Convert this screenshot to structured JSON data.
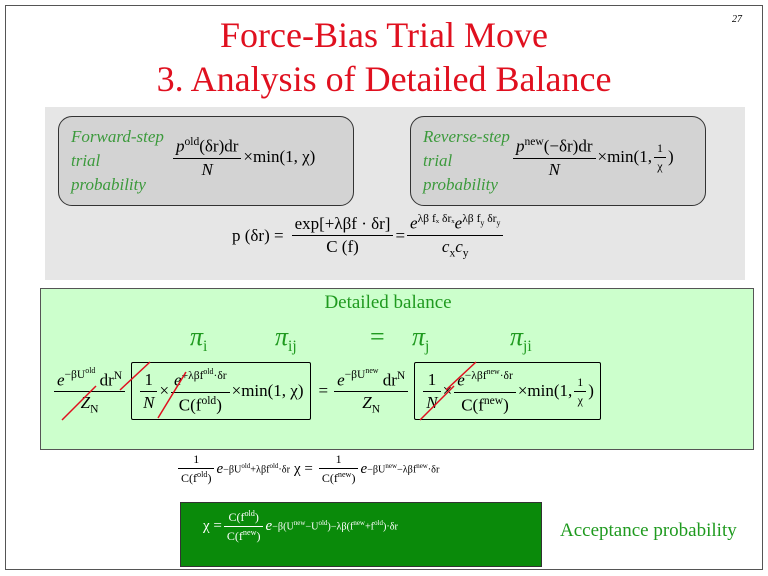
{
  "slide_number": "27",
  "title": [
    "Force-Bias Trial Move",
    "3.  Analysis of Detailed Balance"
  ],
  "forward_box": {
    "label": [
      "Forward-step",
      "trial",
      "probability"
    ],
    "formula": {
      "num": [
        "p",
        "old",
        "(δr)dr"
      ],
      "den": [
        "N"
      ],
      "after": [
        "×min(1, χ)"
      ]
    }
  },
  "reverse_box": {
    "label": [
      "Reverse-step",
      "trial",
      "probability"
    ],
    "formula": {
      "num": [
        "p",
        "new",
        "(−δr)dr"
      ],
      "den": [
        "N"
      ],
      "after": [
        "×min(1, ",
        "1",
        "χ",
        ")"
      ]
    }
  },
  "bias_formula": {
    "lhs": "p (δr) =",
    "num1": "exp[+λβf · δr]",
    "den1": "C (f)",
    "eq": "=",
    "num2": [
      "e",
      "λβ fₓ δrₓ",
      "e",
      "λβ f",
      "y",
      " δr",
      "y"
    ],
    "den2": [
      "c",
      "x",
      "c",
      "y"
    ]
  },
  "detailed_balance": {
    "label": "Detailed balance",
    "pis": [
      "π",
      "i",
      "π",
      "ij",
      "=",
      "π",
      "j",
      "π",
      "ji"
    ],
    "left": {
      "num": [
        "e",
        "−βU",
        "old",
        "dr",
        "N"
      ],
      "den": [
        "Z",
        "N"
      ],
      "bracket": [
        "1",
        "N",
        "×",
        "e",
        "+λβf",
        "old",
        "·δr",
        "C(f",
        "old",
        ")",
        "×min(1, χ)"
      ]
    },
    "equals": "=",
    "right": {
      "num": [
        "e",
        "−βU",
        "new",
        "dr",
        "N"
      ],
      "den": [
        "Z",
        "N"
      ],
      "bracket": [
        "1",
        "N",
        "×",
        "e",
        "−λβf",
        "new",
        "·δr",
        "C(f",
        "new",
        ")",
        "×min(1, ",
        "1",
        "χ",
        ")"
      ]
    }
  },
  "chi_equation": [
    "1",
    "C(f",
    "old",
    ")",
    "e",
    "−βU",
    "old",
    "+λβf",
    "old",
    "·δr",
    "χ =",
    "1",
    "C(f",
    "new",
    ")",
    "e",
    "−βU",
    "new",
    "−λβf",
    "new",
    "·δr"
  ],
  "acceptance": {
    "formula": [
      "χ =",
      "C(f",
      "old",
      ")",
      "C(f",
      "new",
      ")",
      "e",
      "−β(U",
      "new",
      "−U",
      "old",
      ")−λβ(f",
      "new",
      "+f",
      "old",
      ")·δr"
    ],
    "label": "Acceptance probability"
  }
}
